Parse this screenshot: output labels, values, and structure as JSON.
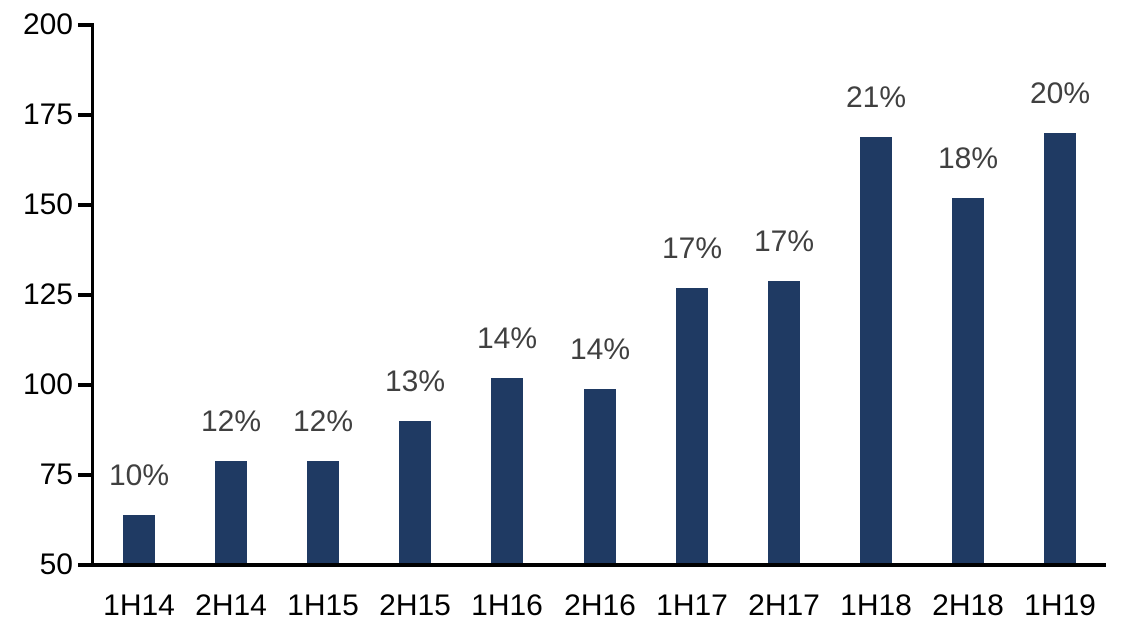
{
  "chart_data": {
    "type": "bar",
    "title": "",
    "xlabel": "",
    "ylabel": "",
    "categories": [
      "1H14",
      "2H14",
      "1H15",
      "2H15",
      "1H16",
      "2H16",
      "1H17",
      "2H17",
      "1H18",
      "2H18",
      "1H19"
    ],
    "values": [
      64,
      79,
      79,
      90,
      102,
      99,
      127,
      129,
      169,
      152,
      170
    ],
    "bar_labels": [
      "10%",
      "12%",
      "12%",
      "13%",
      "14%",
      "14%",
      "17%",
      "17%",
      "21%",
      "18%",
      "20%"
    ],
    "ylim": [
      50,
      200
    ],
    "yticks": [
      50,
      75,
      100,
      125,
      150,
      175,
      200
    ],
    "grid": false,
    "legend_position": "none",
    "colors": {
      "bar": "#1F3A63",
      "bar_label": "#404040",
      "tick_label": "#000000",
      "axis": "#000000",
      "background": "#FFFFFF"
    }
  }
}
